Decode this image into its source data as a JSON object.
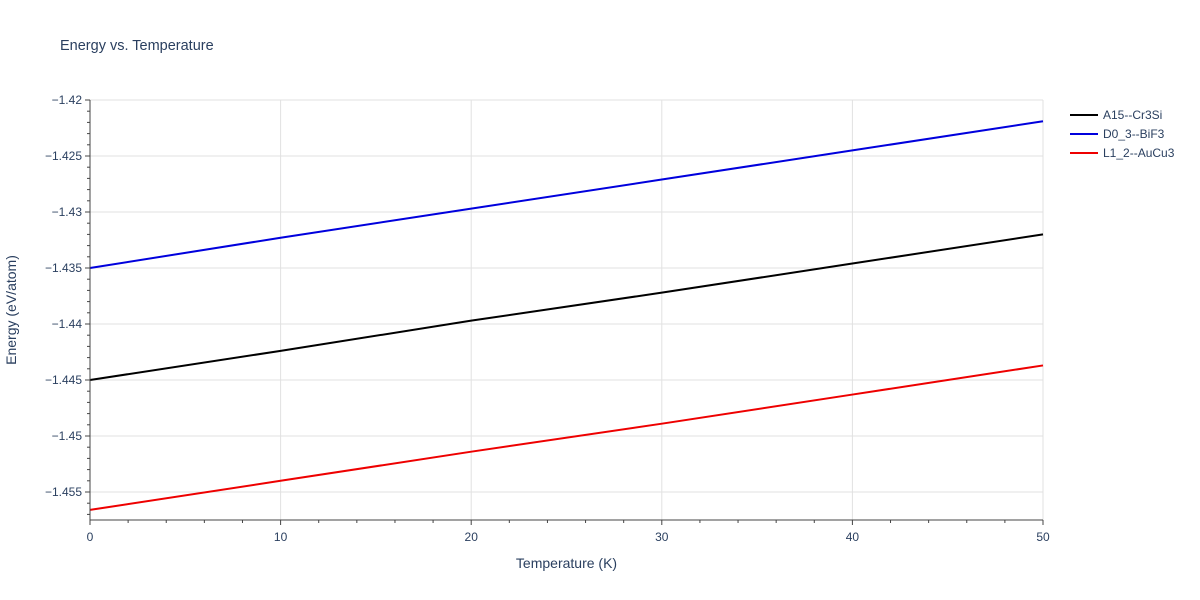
{
  "chart_data": {
    "type": "line",
    "title": "Energy vs. Temperature",
    "xlabel": "Temperature (K)",
    "ylabel": "Energy (eV/atom)",
    "xlim": [
      0,
      50
    ],
    "ylim": [
      -1.4575,
      -1.42
    ],
    "x_ticks": [
      0,
      10,
      20,
      30,
      40,
      50
    ],
    "x_tick_labels": [
      "0",
      "10",
      "20",
      "30",
      "40",
      "50"
    ],
    "y_ticks": [
      -1.42,
      -1.425,
      -1.43,
      -1.435,
      -1.44,
      -1.445,
      -1.45,
      -1.455
    ],
    "y_tick_labels": [
      "−1.42",
      "−1.425",
      "−1.43",
      "−1.435",
      "−1.44",
      "−1.445",
      "−1.45",
      "−1.455"
    ],
    "grid": true,
    "legend_position": "top-right",
    "series": [
      {
        "name": "A15--Cr3Si",
        "color": "#000000",
        "x": [
          0,
          10,
          20,
          30,
          40,
          50
        ],
        "y": [
          -1.445,
          -1.4424,
          -1.4397,
          -1.4372,
          -1.4346,
          -1.432
        ]
      },
      {
        "name": "D0_3--BiF3",
        "color": "#0000dd",
        "x": [
          0,
          10,
          20,
          30,
          40,
          50
        ],
        "y": [
          -1.435,
          -1.4323,
          -1.4297,
          -1.4271,
          -1.4245,
          -1.4219
        ]
      },
      {
        "name": "L1_2--AuCu3",
        "color": "#ee0000",
        "x": [
          0,
          10,
          20,
          30,
          40,
          50
        ],
        "y": [
          -1.4566,
          -1.454,
          -1.4514,
          -1.4489,
          -1.4463,
          -1.4437
        ]
      }
    ]
  }
}
